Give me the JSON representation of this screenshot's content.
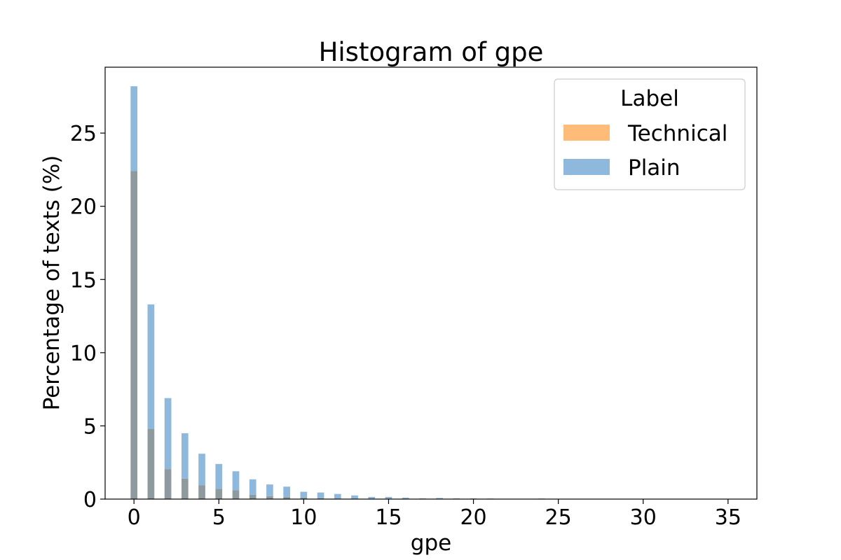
{
  "chart_data": {
    "type": "bar",
    "title": "Histogram of gpe",
    "xlabel": "gpe",
    "ylabel": "Percentage of texts (%)",
    "xlim": [
      -1.7,
      36.7
    ],
    "ylim": [
      0,
      29.5
    ],
    "xticks": [
      0,
      5,
      10,
      15,
      20,
      25,
      30,
      35
    ],
    "yticks": [
      0,
      5,
      10,
      15,
      20,
      25
    ],
    "grid": false,
    "legend": {
      "title": "Label",
      "placement": "top-right"
    },
    "bar_width": 0.4,
    "series": [
      {
        "name": "Technical",
        "color": "#ffbb78",
        "x": [
          0,
          1,
          2,
          3,
          4,
          5,
          6,
          7,
          8,
          9,
          10,
          11
        ],
        "values": [
          22.4,
          4.8,
          2.05,
          1.4,
          0.95,
          0.7,
          0.6,
          0.3,
          0.2,
          0.15,
          0.1,
          0.05
        ]
      },
      {
        "name": "Plain",
        "color": "#8fb9dc",
        "x": [
          0,
          1,
          2,
          3,
          4,
          5,
          6,
          7,
          8,
          9,
          10,
          11,
          12,
          13,
          14,
          15,
          16,
          17,
          18,
          19,
          20,
          21,
          24
        ],
        "values": [
          28.2,
          13.3,
          6.9,
          4.5,
          3.1,
          2.4,
          1.9,
          1.35,
          1.0,
          0.85,
          0.5,
          0.45,
          0.35,
          0.25,
          0.15,
          0.15,
          0.1,
          0.05,
          0.08,
          0.05,
          0.05,
          0.04,
          0.04
        ]
      }
    ],
    "overlap_color": "#8f9a9e"
  }
}
